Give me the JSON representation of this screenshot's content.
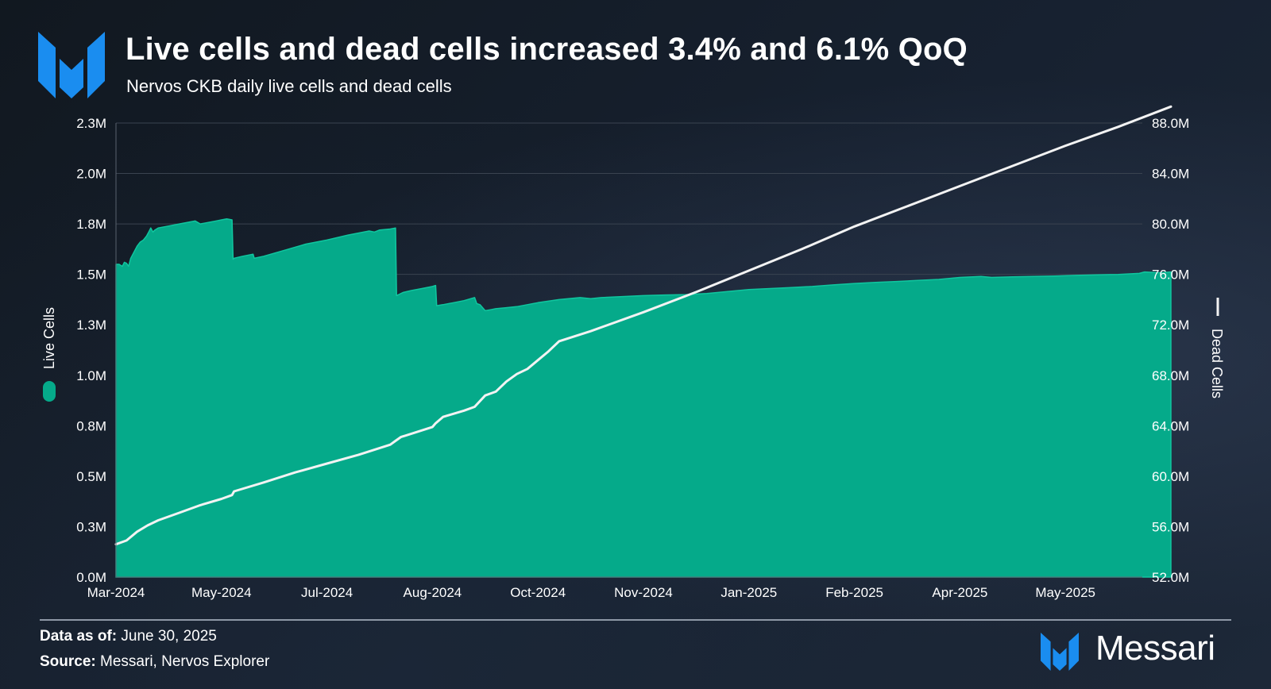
{
  "header": {
    "title": "Live cells and dead cells increased 3.4% and 6.1% QoQ",
    "subtitle": "Nervos CKB daily live cells and dead cells"
  },
  "footer": {
    "data_as_of_label": "Data as of:",
    "data_as_of_value": "June 30, 2025",
    "source_label": "Source:",
    "source_value": "Messari, Nervos Explorer",
    "brand": "Messari"
  },
  "colors": {
    "live_cells": "#05aa8a",
    "dead_cells": "#f3f3f3",
    "brand_blue": "#1a8df0",
    "grid": "#3a4350",
    "text": "#ffffff"
  },
  "chart_data": {
    "type": "area",
    "title": "Live cells and dead cells increased 3.4% and 6.1% QoQ",
    "subtitle": "Nervos CKB daily live cells and dead cells",
    "xlabel": "",
    "x_range": [
      0,
      12.5
    ],
    "x_ticks": [
      {
        "x": 0,
        "label": "Mar-2024"
      },
      {
        "x": 1,
        "label": "May-2024"
      },
      {
        "x": 2,
        "label": "Jul-2024"
      },
      {
        "x": 3,
        "label": "Aug-2024"
      },
      {
        "x": 4,
        "label": "Oct-2024"
      },
      {
        "x": 5,
        "label": "Nov-2024"
      },
      {
        "x": 6,
        "label": "Jan-2025"
      },
      {
        "x": 7,
        "label": "Feb-2025"
      },
      {
        "x": 8,
        "label": "Apr-2025"
      },
      {
        "x": 9,
        "label": "May-2025"
      }
    ],
    "y_left": {
      "label": "Live Cells",
      "range": [
        0,
        2250000
      ],
      "ticks": [
        0,
        250000,
        500000,
        750000,
        1000000,
        1250000,
        1500000,
        1750000,
        2000000,
        2250000
      ],
      "tick_labels": [
        "0.0M",
        "0.3M",
        "0.5M",
        "0.8M",
        "1.0M",
        "1.3M",
        "1.5M",
        "1.8M",
        "2.0M",
        "2.3M"
      ]
    },
    "y_right": {
      "label": "Dead Cells",
      "range": [
        52000000,
        88000000
      ],
      "ticks": [
        52000000,
        56000000,
        60000000,
        64000000,
        68000000,
        72000000,
        76000000,
        80000000,
        84000000,
        88000000
      ],
      "tick_labels": [
        "52.0M",
        "56.0M",
        "60.0M",
        "64.0M",
        "68.0M",
        "72.0M",
        "76.0M",
        "80.0M",
        "84.0M",
        "88.0M"
      ]
    },
    "grid": true,
    "legend": [
      {
        "name": "Live Cells",
        "axis": "left",
        "marker": "pill"
      },
      {
        "name": "Dead Cells",
        "axis": "right",
        "marker": "line"
      }
    ],
    "series": [
      {
        "name": "Live Cells",
        "type": "area",
        "axis": "left",
        "color": "#05aa8a",
        "x": [
          0,
          0.03,
          0.06,
          0.08,
          0.1,
          0.12,
          0.14,
          0.17,
          0.2,
          0.23,
          0.26,
          0.29,
          0.31,
          0.33,
          0.35,
          0.37,
          0.4,
          0.5,
          0.6,
          0.7,
          0.75,
          0.8,
          0.85,
          0.9,
          0.95,
          1.0,
          1.05,
          1.1,
          1.11,
          1.12,
          1.2,
          1.3,
          1.31,
          1.4,
          1.6,
          1.8,
          2.0,
          2.2,
          2.4,
          2.45,
          2.5,
          2.6,
          2.65,
          2.66,
          2.72,
          2.8,
          2.9,
          3.0,
          3.03,
          3.04,
          3.1,
          3.2,
          3.3,
          3.4,
          3.42,
          3.45,
          3.5,
          3.55,
          3.6,
          3.7,
          3.8,
          3.9,
          4.0,
          4.2,
          4.4,
          4.5,
          4.6,
          4.8,
          5.0,
          5.2,
          5.4,
          5.6,
          5.8,
          6.0,
          6.2,
          6.4,
          6.6,
          6.8,
          7.0,
          7.2,
          7.4,
          7.6,
          7.8,
          8.0,
          8.2,
          8.3,
          8.5,
          8.7,
          8.9,
          9.1,
          9.3,
          9.5,
          9.7,
          9.75,
          9.9,
          10.0
        ],
        "values": [
          1550000,
          1550000,
          1540000,
          1560000,
          1555000,
          1540000,
          1580000,
          1610000,
          1640000,
          1660000,
          1670000,
          1690000,
          1710000,
          1730000,
          1710000,
          1720000,
          1730000,
          1740000,
          1750000,
          1760000,
          1765000,
          1750000,
          1755000,
          1760000,
          1765000,
          1770000,
          1775000,
          1770000,
          1575000,
          1580000,
          1590000,
          1600000,
          1580000,
          1590000,
          1620000,
          1650000,
          1670000,
          1695000,
          1715000,
          1710000,
          1720000,
          1725000,
          1730000,
          1395000,
          1410000,
          1420000,
          1430000,
          1440000,
          1445000,
          1345000,
          1350000,
          1360000,
          1370000,
          1385000,
          1355000,
          1350000,
          1320000,
          1325000,
          1330000,
          1335000,
          1340000,
          1350000,
          1360000,
          1375000,
          1385000,
          1380000,
          1385000,
          1390000,
          1395000,
          1398000,
          1400000,
          1405000,
          1415000,
          1425000,
          1430000,
          1435000,
          1440000,
          1448000,
          1455000,
          1460000,
          1465000,
          1470000,
          1475000,
          1485000,
          1490000,
          1485000,
          1488000,
          1490000,
          1492000,
          1495000,
          1498000,
          1500000,
          1505000,
          1512000,
          1508000,
          1512000
        ]
      },
      {
        "name": "Dead Cells",
        "type": "line",
        "axis": "right",
        "color": "#f3f3f3",
        "x": [
          0,
          0.1,
          0.2,
          0.3,
          0.4,
          0.6,
          0.8,
          1.0,
          1.1,
          1.12,
          1.4,
          1.7,
          2.0,
          2.3,
          2.6,
          2.65,
          2.7,
          3.0,
          3.03,
          3.1,
          3.3,
          3.4,
          3.5,
          3.6,
          3.7,
          3.8,
          3.9,
          4.0,
          4.1,
          4.2,
          4.5,
          5.0,
          5.5,
          6.0,
          6.5,
          7.0,
          7.5,
          8.0,
          8.5,
          9.0,
          9.5,
          10.0
        ],
        "values": [
          54600000,
          54900000,
          55600000,
          56100000,
          56500000,
          57100000,
          57700000,
          58200000,
          58500000,
          58800000,
          59500000,
          60300000,
          61000000,
          61700000,
          62500000,
          62800000,
          63100000,
          63900000,
          64200000,
          64700000,
          65200000,
          65500000,
          66400000,
          66700000,
          67500000,
          68100000,
          68500000,
          69200000,
          69900000,
          70700000,
          71500000,
          73000000,
          74600000,
          76300000,
          78000000,
          79800000,
          81400000,
          83000000,
          84600000,
          86200000,
          87700000,
          89300000
        ]
      }
    ]
  }
}
